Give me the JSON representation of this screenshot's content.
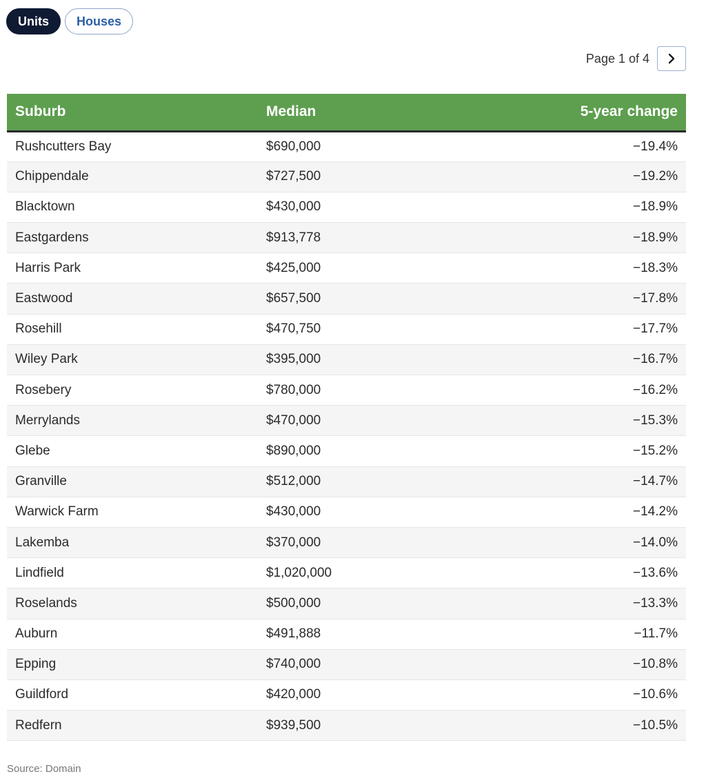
{
  "toggles": {
    "units": "Units",
    "houses": "Houses",
    "active": "units"
  },
  "pager": {
    "text": "Page 1 of 4",
    "next_icon": "chevron-right-icon"
  },
  "table": {
    "headers": [
      "Suburb",
      "Median",
      "5-year change"
    ],
    "header_color": "#5e9e4f",
    "rows": [
      [
        "Rushcutters Bay",
        "$690,000",
        "−19.4%"
      ],
      [
        "Chippendale",
        "$727,500",
        "−19.2%"
      ],
      [
        "Blacktown",
        "$430,000",
        "−18.9%"
      ],
      [
        "Eastgardens",
        "$913,778",
        "−18.9%"
      ],
      [
        "Harris Park",
        "$425,000",
        "−18.3%"
      ],
      [
        "Eastwood",
        "$657,500",
        "−17.8%"
      ],
      [
        "Rosehill",
        "$470,750",
        "−17.7%"
      ],
      [
        "Wiley Park",
        "$395,000",
        "−16.7%"
      ],
      [
        "Rosebery",
        "$780,000",
        "−16.2%"
      ],
      [
        "Merrylands",
        "$470,000",
        "−15.3%"
      ],
      [
        "Glebe",
        "$890,000",
        "−15.2%"
      ],
      [
        "Granville",
        "$512,000",
        "−14.7%"
      ],
      [
        "Warwick Farm",
        "$430,000",
        "−14.2%"
      ],
      [
        "Lakemba",
        "$370,000",
        "−14.0%"
      ],
      [
        "Lindfield",
        "$1,020,000",
        "−13.6%"
      ],
      [
        "Roselands",
        "$500,000",
        "−13.3%"
      ],
      [
        "Auburn",
        "$491,888",
        "−11.7%"
      ],
      [
        "Epping",
        "$740,000",
        "−10.8%"
      ],
      [
        "Guildford",
        "$420,000",
        "−10.6%"
      ],
      [
        "Redfern",
        "$939,500",
        "−10.5%"
      ]
    ]
  },
  "source": "Source: Domain"
}
